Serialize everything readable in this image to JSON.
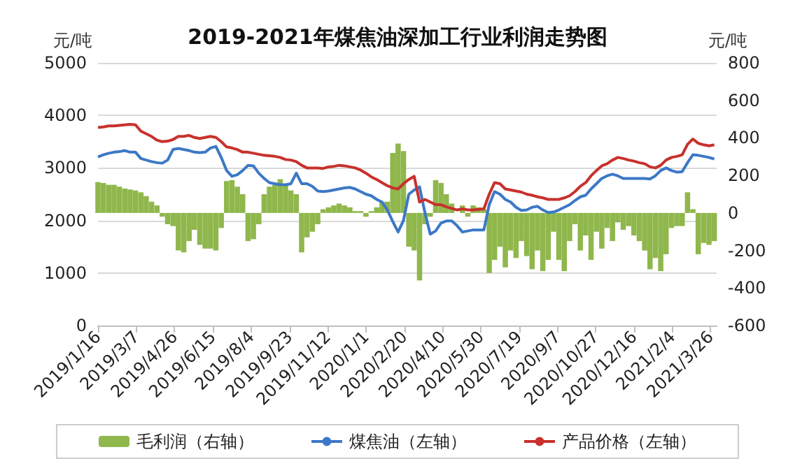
{
  "chart_data": {
    "type": "line",
    "title": "2019-2021年煤焦油深加工行业利润走势图",
    "ylabel": "元/吨",
    "y2label": "元/吨",
    "x": [
      "2019-01-16",
      "2019-01-23",
      "2019-01-30",
      "2019-02-06",
      "2019-02-13",
      "2019-02-20",
      "2019-02-27",
      "2019-03-06",
      "2019-03-13",
      "2019-03-20",
      "2019-03-27",
      "2019-04-03",
      "2019-04-10",
      "2019-04-17",
      "2019-04-24",
      "2019-05-01",
      "2019-05-08",
      "2019-05-15",
      "2019-05-22",
      "2019-05-29",
      "2019-06-05",
      "2019-06-12",
      "2019-06-19",
      "2019-06-26",
      "2019-07-03",
      "2019-07-10",
      "2019-07-17",
      "2019-07-24",
      "2019-07-31",
      "2019-08-07",
      "2019-08-14",
      "2019-08-21",
      "2019-08-28",
      "2019-09-04",
      "2019-09-11",
      "2019-09-18",
      "2019-09-25",
      "2019-10-02",
      "2019-10-09",
      "2019-10-16",
      "2019-10-23",
      "2019-10-30",
      "2019-11-06",
      "2019-11-13",
      "2019-11-20",
      "2019-11-27",
      "2019-12-04",
      "2019-12-11",
      "2019-12-18",
      "2019-12-25",
      "2020-01-01",
      "2020-01-08",
      "2020-01-15",
      "2020-01-22",
      "2020-01-29",
      "2020-02-05",
      "2020-02-12",
      "2020-02-19",
      "2020-02-26",
      "2020-03-04",
      "2020-03-11",
      "2020-03-18",
      "2020-03-25",
      "2020-04-01",
      "2020-04-08",
      "2020-04-15",
      "2020-04-22",
      "2020-04-29",
      "2020-05-06",
      "2020-05-13",
      "2020-05-20",
      "2020-05-27",
      "2020-06-03",
      "2020-06-10",
      "2020-06-17",
      "2020-06-24",
      "2020-07-01",
      "2020-07-08",
      "2020-07-15",
      "2020-07-22",
      "2020-07-29",
      "2020-08-05",
      "2020-08-12",
      "2020-08-19",
      "2020-08-26",
      "2020-09-02",
      "2020-09-09",
      "2020-09-16",
      "2020-09-23",
      "2020-09-30",
      "2020-10-07",
      "2020-10-14",
      "2020-10-21",
      "2020-10-28",
      "2020-11-04",
      "2020-11-11",
      "2020-11-18",
      "2020-11-25",
      "2020-12-02",
      "2020-12-09",
      "2020-12-16",
      "2020-12-23",
      "2020-12-30",
      "2021-01-06",
      "2021-01-13",
      "2021-01-20",
      "2021-01-27",
      "2021-02-03",
      "2021-02-10",
      "2021-02-17",
      "2021-02-24",
      "2021-03-03",
      "2021-03-10",
      "2021-03-17",
      "2021-03-24",
      "2021-03-31"
    ],
    "series": [
      {
        "name": "毛利润（右轴）",
        "type": "bar",
        "axis": "y2",
        "color": "#8fb74c",
        "values": [
          165,
          160,
          150,
          150,
          140,
          130,
          125,
          120,
          110,
          90,
          60,
          40,
          -20,
          -60,
          -70,
          -200,
          -210,
          -150,
          -90,
          -170,
          -190,
          -190,
          -200,
          -80,
          170,
          175,
          140,
          100,
          -150,
          -140,
          -60,
          100,
          140,
          150,
          180,
          150,
          120,
          100,
          -210,
          -130,
          -100,
          -60,
          20,
          30,
          40,
          50,
          40,
          30,
          10,
          10,
          -20,
          10,
          30,
          60,
          60,
          320,
          370,
          330,
          -180,
          -200,
          -360,
          -60,
          -20,
          175,
          160,
          100,
          50,
          null,
          40,
          -20,
          40,
          30,
          20,
          -320,
          -250,
          -180,
          -290,
          -200,
          -240,
          -150,
          -230,
          -300,
          -200,
          -310,
          -250,
          -100,
          -250,
          -310,
          -150,
          -60,
          -200,
          -120,
          -250,
          -100,
          -190,
          -80,
          -150,
          -50,
          -90,
          -70,
          -120,
          -150,
          -200,
          -300,
          -240,
          -310,
          -220,
          -80,
          -70,
          -70,
          110,
          20,
          -220,
          -160,
          -170,
          -150
        ]
      },
      {
        "name": "煤焦油（左轴）",
        "color": "#3c78c6",
        "values": [
          3210,
          3250,
          3280,
          3300,
          3310,
          3330,
          3300,
          3300,
          3180,
          3150,
          3120,
          3100,
          3090,
          3150,
          3350,
          3370,
          3350,
          3330,
          3300,
          3290,
          3300,
          3380,
          3410,
          3200,
          2950,
          2840,
          2870,
          2950,
          3050,
          3040,
          2900,
          2800,
          2720,
          2700,
          2680,
          2680,
          2700,
          2900,
          2700,
          2700,
          2650,
          2560,
          2550,
          2560,
          2580,
          2600,
          2620,
          2630,
          2600,
          2550,
          2500,
          2470,
          2400,
          2350,
          2200,
          1980,
          1780,
          2000,
          2500,
          2580,
          2640,
          2150,
          1740,
          1800,
          1950,
          1990,
          1990,
          1900,
          1780,
          1800,
          1820,
          1820,
          1820,
          2300,
          2550,
          2500,
          2400,
          2350,
          2250,
          2190,
          2200,
          2250,
          2270,
          2200,
          2150,
          2160,
          2200,
          2250,
          2300,
          2380,
          2450,
          2480,
          2600,
          2700,
          2800,
          2850,
          2880,
          2850,
          2800,
          2800,
          2800,
          2800,
          2800,
          2790,
          2850,
          2950,
          3000,
          2950,
          2920,
          2930,
          3100,
          3250,
          3240,
          3220,
          3200,
          3170
        ]
      },
      {
        "name": "产品价格（左轴）",
        "color": "#c8312c",
        "values": [
          3770,
          3780,
          3800,
          3800,
          3810,
          3820,
          3830,
          3820,
          3700,
          3650,
          3600,
          3530,
          3500,
          3510,
          3540,
          3600,
          3600,
          3620,
          3580,
          3560,
          3580,
          3600,
          3580,
          3500,
          3400,
          3380,
          3350,
          3300,
          3300,
          3280,
          3260,
          3240,
          3230,
          3220,
          3200,
          3160,
          3150,
          3120,
          3050,
          3000,
          3000,
          3000,
          2990,
          3020,
          3030,
          3050,
          3040,
          3020,
          3000,
          2960,
          2900,
          2830,
          2780,
          2720,
          2660,
          2620,
          2600,
          2700,
          2780,
          2840,
          2350,
          2400,
          2350,
          2300,
          2300,
          2260,
          2230,
          2200,
          2220,
          2200,
          2200,
          2210,
          2220,
          2500,
          2720,
          2700,
          2600,
          2580,
          2560,
          2540,
          2500,
          2480,
          2450,
          2430,
          2400,
          2400,
          2400,
          2430,
          2470,
          2550,
          2650,
          2720,
          2850,
          2950,
          3040,
          3080,
          3150,
          3200,
          3180,
          3150,
          3130,
          3100,
          3080,
          3020,
          3000,
          3050,
          3150,
          3200,
          3220,
          3250,
          3450,
          3550,
          3470,
          3440,
          3420,
          3440
        ]
      }
    ],
    "xlim": [
      "2019-01-16",
      "2021-04-03"
    ],
    "xticks": [
      {
        "value": "2019-01-16",
        "label": "2019/1/16"
      },
      {
        "value": "2019-03-07",
        "label": "2019/3/7"
      },
      {
        "value": "2019-04-26",
        "label": "2019/4/26"
      },
      {
        "value": "2019-06-15",
        "label": "2019/6/15"
      },
      {
        "value": "2019-08-04",
        "label": "2019/8/4"
      },
      {
        "value": "2019-09-23",
        "label": "2019/9/23"
      },
      {
        "value": "2019-11-12",
        "label": "2019/11/12"
      },
      {
        "value": "2020-01-01",
        "label": "2020/1/1"
      },
      {
        "value": "2020-02-20",
        "label": "2020/2/20"
      },
      {
        "value": "2020-04-10",
        "label": "2020/4/10"
      },
      {
        "value": "2020-05-30",
        "label": "2020/5/30"
      },
      {
        "value": "2020-07-19",
        "label": "2020/7/19"
      },
      {
        "value": "2020-09-07",
        "label": "2020/9/7"
      },
      {
        "value": "2020-10-27",
        "label": "2020/10/27"
      },
      {
        "value": "2020-12-16",
        "label": "2020/12/16"
      },
      {
        "value": "2021-02-04",
        "label": "2021/2/4"
      },
      {
        "value": "2021-03-26",
        "label": "2021/3/26"
      }
    ],
    "ylim": [
      0,
      5000
    ],
    "yticks": [
      0,
      1000,
      2000,
      3000,
      4000,
      5000
    ],
    "y2lim": [
      -600,
      800
    ],
    "y2ticks": [
      -600,
      -400,
      -200,
      0,
      200,
      400,
      600,
      800
    ],
    "grid": "y",
    "legend": "bottom",
    "marker": "none",
    "line_style": "solid"
  }
}
